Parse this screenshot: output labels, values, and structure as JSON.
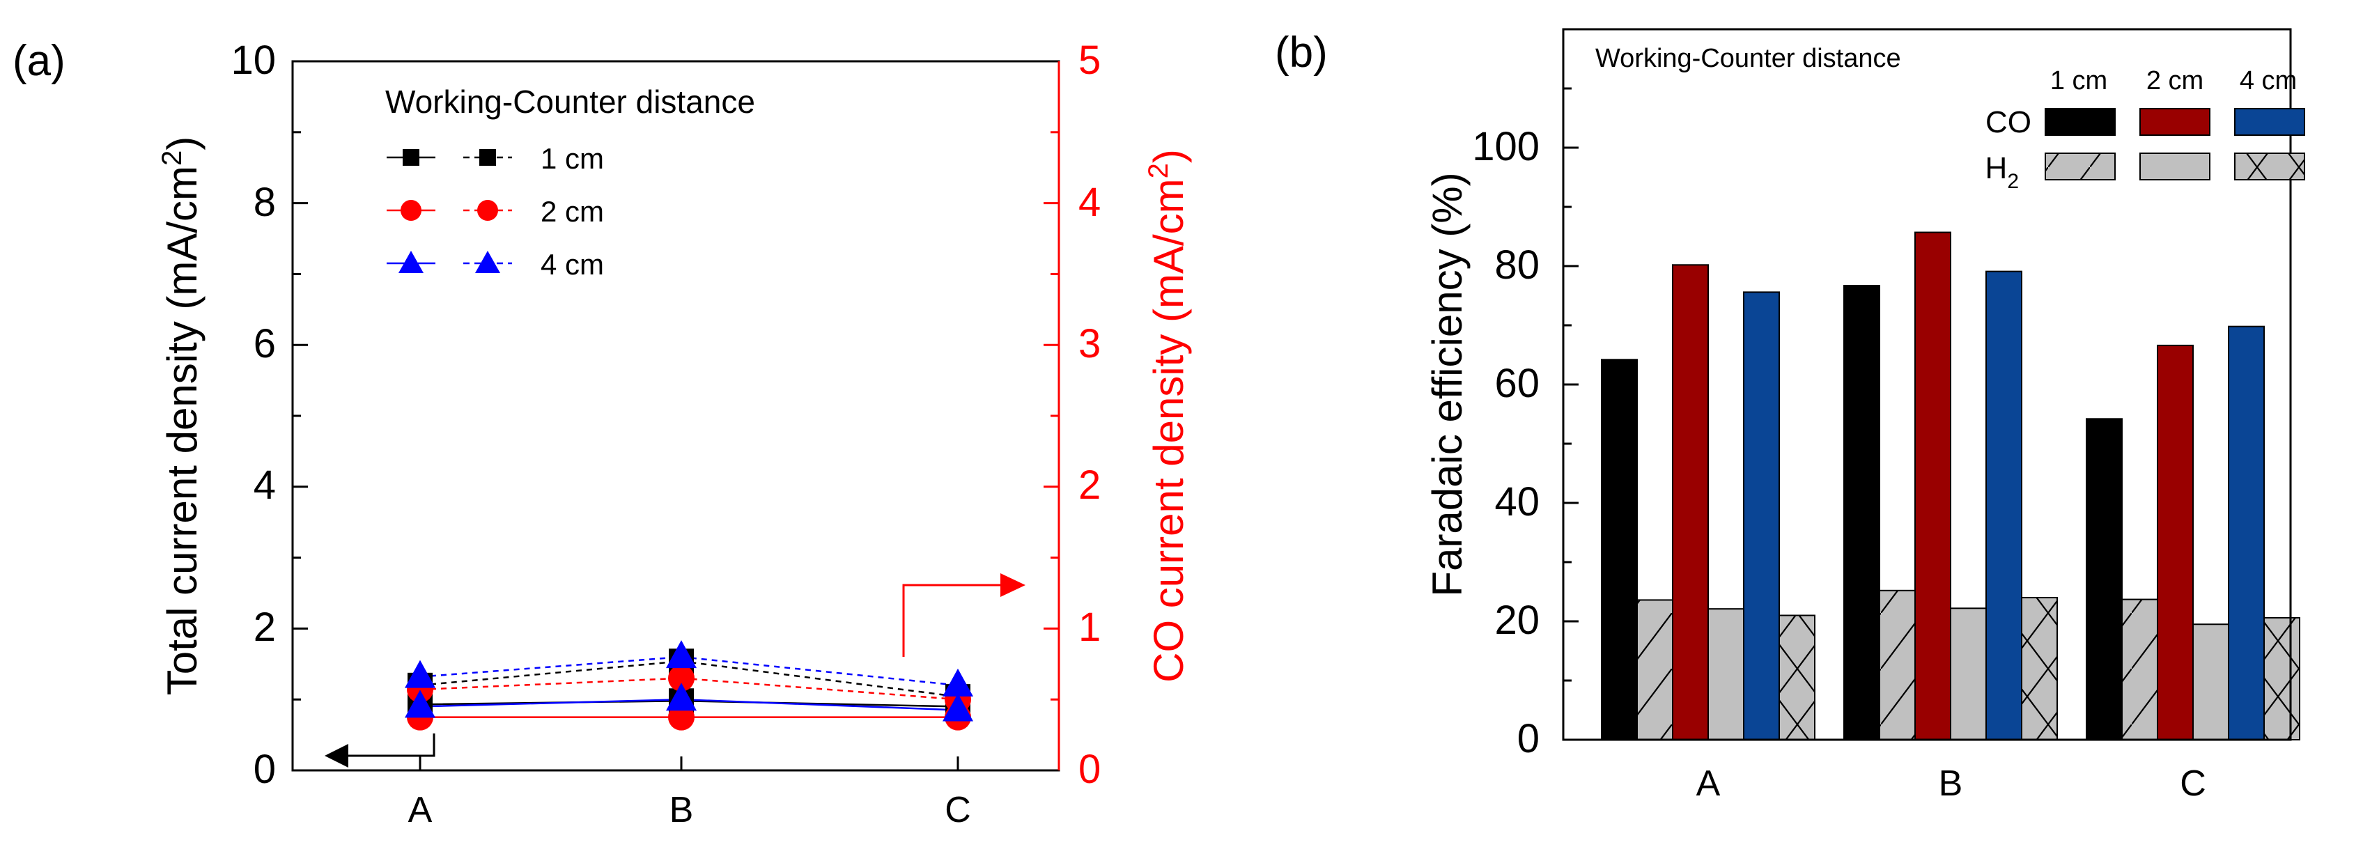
{
  "chart_data": [
    {
      "panel_label": "(a)",
      "type": "line",
      "categories": [
        "A",
        "B",
        "C"
      ],
      "ylabel_left": "Total current density (mA/cm",
      "ylabel_right": "CO current density (mA/cm",
      "ylabel_sup": "2",
      "ylabel_close": ")",
      "ylim_left": [
        0,
        10
      ],
      "ylim_right": [
        0,
        5
      ],
      "yticks_left": [
        "0",
        "2",
        "4",
        "6",
        "8",
        "10"
      ],
      "yticks_right": [
        "0",
        "1",
        "2",
        "3",
        "4",
        "5"
      ],
      "right_axis_color": "#ff0000",
      "legend_title": "Working-Counter distance",
      "series": [
        {
          "name": "1 cm",
          "color": "#000000",
          "marker": "square",
          "total": [
            0.93,
            0.98,
            0.9
          ],
          "co": [
            0.6,
            0.77,
            0.52
          ]
        },
        {
          "name": "2 cm",
          "color": "#ff0000",
          "marker": "circle",
          "total": [
            0.75,
            0.75,
            0.75
          ],
          "co": [
            0.57,
            0.65,
            0.5
          ]
        },
        {
          "name": "4 cm",
          "color": "#0000ff",
          "marker": "triangle",
          "total": [
            0.9,
            1.0,
            0.85
          ],
          "co": [
            0.66,
            0.8,
            0.6
          ]
        }
      ]
    },
    {
      "panel_label": "(b)",
      "type": "bar",
      "categories": [
        "A",
        "B",
        "C"
      ],
      "ylabel": "Faradaic efficiency (%)",
      "ylim": [
        0,
        120
      ],
      "yticks": [
        "0",
        "20",
        "40",
        "60",
        "80",
        "100"
      ],
      "legend_title": "Working-Counter distance",
      "distances": [
        "1 cm",
        "2 cm",
        "4 cm"
      ],
      "products": [
        "CO",
        "H",
        "2"
      ],
      "series": [
        {
          "name": "CO 1 cm",
          "color": "#000000",
          "values": [
            64.2,
            76.7,
            54.2
          ]
        },
        {
          "name": "H2 1 cm",
          "color": "#c0c0c0",
          "hatch": "diagonal",
          "values": [
            23.6,
            25.2,
            23.7
          ]
        },
        {
          "name": "CO 2 cm",
          "color": "#990000",
          "values": [
            80.2,
            85.7,
            66.6
          ]
        },
        {
          "name": "H2 2 cm",
          "color": "#c0c0c0",
          "hatch": "none",
          "values": [
            22.1,
            22.2,
            19.5
          ]
        },
        {
          "name": "CO 4 cm",
          "color": "#0a4595",
          "values": [
            75.6,
            79.1,
            69.8
          ]
        },
        {
          "name": "H2 4 cm",
          "color": "#c0c0c0",
          "hatch": "cross",
          "values": [
            21.0,
            24.0,
            20.6
          ]
        }
      ]
    }
  ]
}
